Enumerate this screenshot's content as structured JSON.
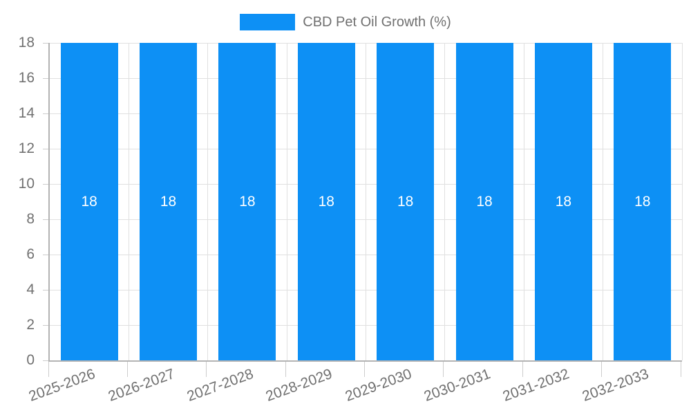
{
  "legend": {
    "label": "CBD Pet Oil Growth (%)"
  },
  "chart_data": {
    "type": "bar",
    "title": "",
    "categories": [
      "2025-2026",
      "2026-2027",
      "2027-2028",
      "2028-2029",
      "2029-2030",
      "2030-2031",
      "2031-2032",
      "2032-2033"
    ],
    "series": [
      {
        "name": "CBD Pet Oil Growth (%)",
        "values": [
          18,
          18,
          18,
          18,
          18,
          18,
          18,
          18
        ],
        "color": "#0d90f5"
      }
    ],
    "xlabel": "",
    "ylabel": "",
    "ylim": [
      0,
      18
    ],
    "yticks": [
      0,
      2,
      4,
      6,
      8,
      10,
      12,
      14,
      16,
      18
    ],
    "grid": true,
    "legend_position": "top",
    "bar_labels_shown": true,
    "x_label_rotation_deg": -20
  },
  "colors": {
    "bar": "#0d90f5",
    "grid": "#e0e0e0",
    "axis": "#b3b3b3",
    "tick": "#cccccc",
    "text": "#707070",
    "bar_label": "#ffffff",
    "background": "#ffffff"
  }
}
